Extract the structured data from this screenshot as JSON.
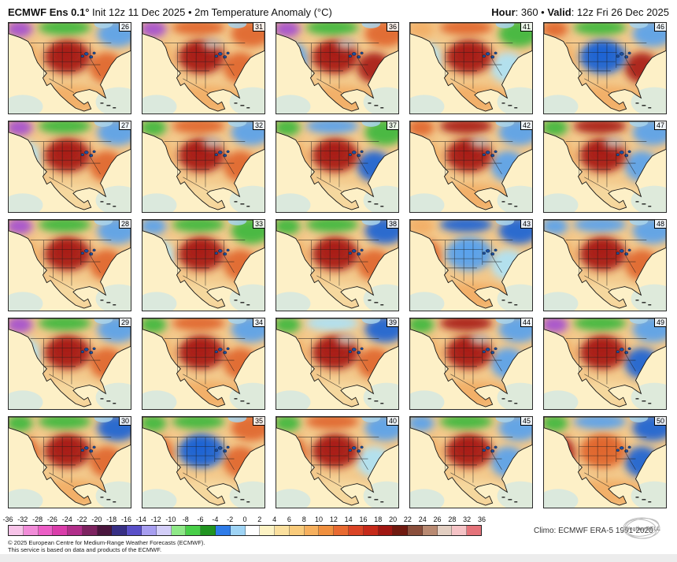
{
  "header": {
    "model": "ECMWF Ens 0.1°",
    "subtitle": " Init 12z 11 Dec 2025 • 2m Temperature Anomaly (°C)",
    "hour_label": "Hour",
    "hour_value": ": 360 • ",
    "valid_label": "Valid",
    "valid_value": ": 12z Fri 26 Dec 2025"
  },
  "panels": [
    {
      "member": 26,
      "regions": {
        "nw": "purple",
        "n": "green",
        "ne": "cool",
        "w": "mild",
        "c": "hot",
        "e": "warm",
        "s": "mild"
      },
      "gray": false
    },
    {
      "member": 31,
      "regions": {
        "nw": "purple",
        "n": "warm",
        "ne": "warm",
        "w": "mild",
        "c": "hot",
        "e": "warm",
        "s": "mild"
      },
      "gray": true
    },
    {
      "member": 36,
      "regions": {
        "nw": "purple",
        "n": "green",
        "ne": "warm",
        "w": "cool",
        "c": "hot",
        "e": "hot",
        "s": "mild"
      },
      "gray": true
    },
    {
      "member": 41,
      "regions": {
        "nw": "mild",
        "n": "warm",
        "ne": "green",
        "w": "chill",
        "c": "hot",
        "e": "chill",
        "s": "mild"
      },
      "gray": false
    },
    {
      "member": 46,
      "regions": {
        "nw": "warm",
        "n": "green",
        "ne": "cool",
        "w": "mild",
        "c": "cold",
        "e": "hot",
        "s": "mild"
      },
      "gray": false
    },
    {
      "member": 27,
      "regions": {
        "nw": "purple",
        "n": "green",
        "ne": "cool",
        "w": "chill",
        "c": "hot",
        "e": "warm",
        "s": "tan"
      },
      "gray": false
    },
    {
      "member": 32,
      "regions": {
        "nw": "green",
        "n": "warm",
        "ne": "cool",
        "w": "mild",
        "c": "hot",
        "e": "warm",
        "s": "tan"
      },
      "gray": true
    },
    {
      "member": 37,
      "regions": {
        "nw": "green",
        "n": "cool",
        "ne": "green",
        "w": "mild",
        "c": "hot",
        "e": "cold",
        "s": "tan"
      },
      "gray": false
    },
    {
      "member": 42,
      "regions": {
        "nw": "warm",
        "n": "hot",
        "ne": "cool",
        "w": "mild",
        "c": "hot",
        "e": "cool",
        "s": "mild"
      },
      "gray": true
    },
    {
      "member": 47,
      "regions": {
        "nw": "green",
        "n": "hot",
        "ne": "cool",
        "w": "mild",
        "c": "hot",
        "e": "cool",
        "s": "tan"
      },
      "gray": true
    },
    {
      "member": 28,
      "regions": {
        "nw": "purple",
        "n": "green",
        "ne": "cool",
        "w": "mild",
        "c": "hot",
        "e": "warm",
        "s": "tan"
      },
      "gray": false
    },
    {
      "member": 33,
      "regions": {
        "nw": "cool",
        "n": "green",
        "ne": "green",
        "w": "chill",
        "c": "hot",
        "e": "warm",
        "s": "tan"
      },
      "gray": false
    },
    {
      "member": 38,
      "regions": {
        "nw": "green",
        "n": "green",
        "ne": "cold",
        "w": "mild",
        "c": "hot",
        "e": "warm",
        "s": "tan"
      },
      "gray": false
    },
    {
      "member": 43,
      "regions": {
        "nw": "mild",
        "n": "cold",
        "ne": "cold",
        "w": "warm",
        "c": "cool",
        "e": "chill",
        "s": "mild"
      },
      "gray": false
    },
    {
      "member": 48,
      "regions": {
        "nw": "cool",
        "n": "cool",
        "ne": "cool",
        "w": "mild",
        "c": "hot",
        "e": "warm",
        "s": "tan"
      },
      "gray": false
    },
    {
      "member": 29,
      "regions": {
        "nw": "purple",
        "n": "green",
        "ne": "cool",
        "w": "chill",
        "c": "hot",
        "e": "warm",
        "s": "tan"
      },
      "gray": false
    },
    {
      "member": 34,
      "regions": {
        "nw": "green",
        "n": "warm",
        "ne": "cool",
        "w": "mild",
        "c": "hot",
        "e": "warm",
        "s": "mild"
      },
      "gray": false
    },
    {
      "member": 39,
      "regions": {
        "nw": "green",
        "n": "chill",
        "ne": "cold",
        "w": "mild",
        "c": "hot",
        "e": "warm",
        "s": "tan"
      },
      "gray": true
    },
    {
      "member": 44,
      "regions": {
        "nw": "green",
        "n": "hot",
        "ne": "cool",
        "w": "mild",
        "c": "hot",
        "e": "cool",
        "s": "mild"
      },
      "gray": true
    },
    {
      "member": 49,
      "regions": {
        "nw": "purple",
        "n": "green",
        "ne": "cool",
        "w": "mild",
        "c": "hot",
        "e": "cold",
        "s": "tan"
      },
      "gray": false
    },
    {
      "member": 30,
      "regions": {
        "nw": "green",
        "n": "green",
        "ne": "cold",
        "w": "warm",
        "c": "hot",
        "e": "warm",
        "s": "mild"
      },
      "gray": false
    },
    {
      "member": 35,
      "regions": {
        "nw": "green",
        "n": "green",
        "ne": "warm",
        "w": "warm",
        "c": "cold",
        "e": "warm",
        "s": "tan"
      },
      "gray": false
    },
    {
      "member": 40,
      "regions": {
        "nw": "green",
        "n": "warm",
        "ne": "cool",
        "w": "warm",
        "c": "hot",
        "e": "chill",
        "s": "tan"
      },
      "gray": false
    },
    {
      "member": 45,
      "regions": {
        "nw": "cool",
        "n": "green",
        "ne": "cool",
        "w": "mild",
        "c": "hot",
        "e": "cool",
        "s": "tan"
      },
      "gray": false
    },
    {
      "member": 50,
      "regions": {
        "nw": "green",
        "n": "cool",
        "ne": "cold",
        "w": "hot",
        "c": "warm",
        "e": "cold",
        "s": "mild"
      },
      "gray": false
    }
  ],
  "map_palette": {
    "tan": "#f6d9a0",
    "mild": "#f2ae66",
    "warm": "#e0662f",
    "hot": "#a81c12",
    "cool": "#5aa2ec",
    "cold": "#1d64d4",
    "chill": "#aee2f6",
    "green": "#3cb83c",
    "purple": "#a44fd0",
    "gray": "#c7beb4",
    "land": "#f3c98c",
    "ocean": "#fdf0c7",
    "ocean_tint": "#b9e2f4",
    "hudson": "#a8d4ec",
    "lakes": "#1b4fa0",
    "coast": "#151515"
  },
  "colorbar": {
    "ticks": [
      "-36",
      "-32",
      "-28",
      "-26",
      "-24",
      "-22",
      "-20",
      "-18",
      "-16",
      "-14",
      "-12",
      "-10",
      "-8",
      "-6",
      "-4",
      "-2",
      "0",
      "2",
      "4",
      "6",
      "8",
      "10",
      "12",
      "14",
      "16",
      "18",
      "20",
      "22",
      "24",
      "26",
      "28",
      "32",
      "36"
    ],
    "colors": [
      "#f7c3e8",
      "#f18cd8",
      "#ec5ec6",
      "#da3daa",
      "#b12f8a",
      "#7d2360",
      "#4a163e",
      "#383085",
      "#5a50c8",
      "#a79ef0",
      "#d3cef8",
      "#8fe888",
      "#49cf49",
      "#219421",
      "#2f7ce8",
      "#9fd4f5",
      "#ffffff",
      "#fdf3c4",
      "#fbe09e",
      "#f9cb7b",
      "#f6b05e",
      "#f0903f",
      "#e86a31",
      "#da4426",
      "#c62a1a",
      "#a01712",
      "#701a10",
      "#8a4f3c",
      "#b98a72",
      "#e3cfc2",
      "#f5c3c6",
      "#e4737a"
    ]
  },
  "footer": {
    "climo": "Climo: ECMWF ERA-5 1991-2020",
    "logo": "WeatherBELL",
    "copyright": "© 2025 European Centre for Medium-Range Weather Forecasts (ECMWF).",
    "service": "This service is based on data and products of the ECMWF."
  }
}
